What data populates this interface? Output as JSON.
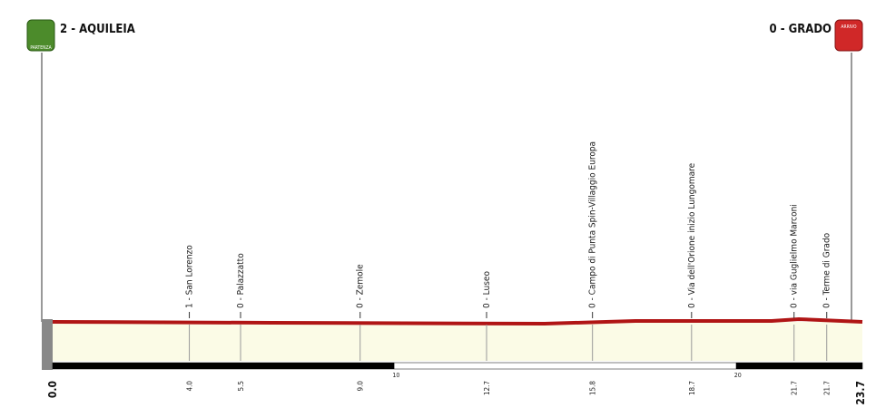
{
  "start": {
    "label": "2 - AQUILEIA",
    "km": "0.0",
    "badge": "PARTENZA"
  },
  "finish": {
    "label": "0 - GRADO",
    "km": "23.7",
    "badge": "ARRIVO"
  },
  "waypoints": [
    {
      "label": "1 - San Lorenzo",
      "km": "4.0"
    },
    {
      "label": "0 - Palazzatto",
      "km": "5.5"
    },
    {
      "label": "0 - Zemole",
      "km": "9.0"
    },
    {
      "label": "0 - Luseo",
      "km": "12.7"
    },
    {
      "label": "0 - Campo di Punta Spin-Villaggio Europa",
      "km": "15.8"
    },
    {
      "label": "0 - Via dell'Orione inizio Lungomare",
      "km": "18.7"
    },
    {
      "label": "0 - via Guglielmo Marconi",
      "km": "21.7"
    },
    {
      "label": "0 - Terme di Grado",
      "km": "21.7"
    }
  ],
  "scale_marks": [
    "10",
    "20"
  ]
}
